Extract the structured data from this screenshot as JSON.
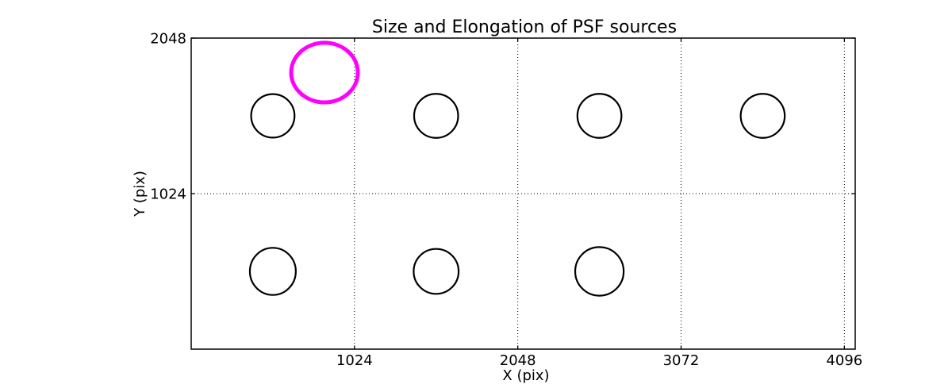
{
  "chart_data": {
    "type": "scatter",
    "title": "Size and Elongation of PSF sources",
    "xlabel": "X (pix)",
    "ylabel": "Y (pix)",
    "xlim": [
      0,
      4164
    ],
    "ylim": [
      0,
      2048
    ],
    "grid": true,
    "grid_style": "dotted",
    "legend": "none",
    "xticks": [
      {
        "value": 1024,
        "label": "1024"
      },
      {
        "value": 2048,
        "label": "2048"
      },
      {
        "value": 3072,
        "label": "3072"
      },
      {
        "value": 4096,
        "label": "4096"
      }
    ],
    "yticks": [
      {
        "value": 1024,
        "label": "1024"
      },
      {
        "value": 2048,
        "label": "2048"
      }
    ],
    "colors": {
      "normal_source": "#000000",
      "flagged_source": "#ff00ff"
    },
    "sources": [
      {
        "x": 512,
        "y": 1536,
        "a": 136,
        "b": 143,
        "color": "#000000",
        "stroke_width": 2.2
      },
      {
        "x": 1536,
        "y": 1536,
        "a": 138,
        "b": 145,
        "color": "#000000",
        "stroke_width": 2.2
      },
      {
        "x": 2560,
        "y": 1536,
        "a": 138,
        "b": 145,
        "color": "#000000",
        "stroke_width": 2.2
      },
      {
        "x": 3584,
        "y": 1536,
        "a": 138,
        "b": 145,
        "color": "#000000",
        "stroke_width": 2.2
      },
      {
        "x": 512,
        "y": 512,
        "a": 144,
        "b": 155,
        "color": "#000000",
        "stroke_width": 2.2
      },
      {
        "x": 1536,
        "y": 512,
        "a": 141,
        "b": 148,
        "color": "#000000",
        "stroke_width": 2.2
      },
      {
        "x": 2560,
        "y": 512,
        "a": 152,
        "b": 160,
        "color": "#000000",
        "stroke_width": 2.2
      },
      {
        "x": 836,
        "y": 1821,
        "a": 209,
        "b": 196,
        "color": "#ff00ff",
        "stroke_width": 5
      }
    ]
  }
}
